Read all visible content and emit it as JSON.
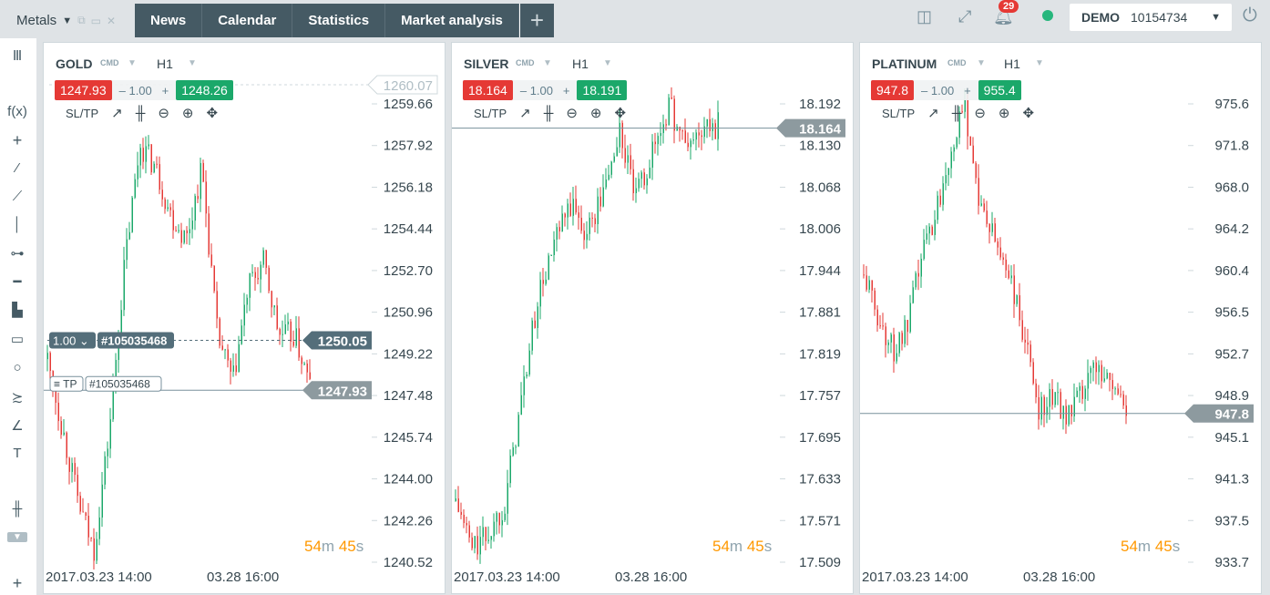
{
  "topbar": {
    "workspace": "Metals",
    "tabs": [
      "News",
      "Calendar",
      "Statistics",
      "Market analysis"
    ],
    "add_tab": "+",
    "notifications": "29",
    "account_type": "DEMO",
    "account_number": "10154734",
    "status_color": "#26b67c"
  },
  "left_toolbar": [
    "columns-icon",
    "function-icon",
    "crosshair-icon",
    "line-icon",
    "ray-icon",
    "vertical-line-icon",
    "horizontal-line-icon",
    "horizontal-ray-icon",
    "volume-bars-icon",
    "rectangle-icon",
    "circle-icon",
    "fibonacci-icon",
    "angle-icon",
    "text-icon",
    "candle-type-icon",
    "collapse-icon",
    "add-icon"
  ],
  "colors": {
    "up": "#1ba86a",
    "down": "#e53935",
    "bid": "#e53935",
    "ask": "#1ba86a",
    "timer": "#ff9800"
  },
  "panels": [
    {
      "symbol": "GOLD",
      "type": "CMD",
      "timeframe": "H1",
      "bid": "1247.93",
      "ask": "1248.26",
      "qty": "1.00",
      "minus": "–",
      "plus": "+",
      "sltp": "SL/TP",
      "timer_m": "54",
      "timer_s": "45",
      "m": "m",
      "s": "s",
      "dates": [
        "2017.03.23 14:00",
        "03.28 16:00"
      ]
    },
    {
      "symbol": "SILVER",
      "type": "CMD",
      "timeframe": "H1",
      "bid": "18.164",
      "ask": "18.191",
      "qty": "1.00",
      "minus": "–",
      "plus": "+",
      "sltp": "SL/TP",
      "timer_m": "54",
      "timer_s": "45",
      "m": "m",
      "s": "s",
      "dates": [
        "2017.03.23 14:00",
        "03.28 16:00"
      ]
    },
    {
      "symbol": "PLATINUM",
      "type": "CMD",
      "timeframe": "H1",
      "bid": "947.8",
      "ask": "955.4",
      "qty": "1.00",
      "minus": "–",
      "plus": "+",
      "sltp": "SL/TP",
      "timer_m": "54",
      "timer_s": "45",
      "m": "m",
      "s": "s",
      "dates": [
        "2017.03.23 14:00",
        "03.28 16:00"
      ]
    }
  ],
  "chart_data": [
    {
      "type": "candlestick",
      "symbol": "GOLD",
      "ticks": [
        "1259.66",
        "1257.92",
        "1256.18",
        "1254.44",
        "1252.70",
        "1250.96",
        "1249.22",
        "1247.48",
        "1245.74",
        "1244.00",
        "1242.26",
        "1240.52"
      ],
      "ylim": [
        1240.52,
        1259.66
      ],
      "current_price": "1247.93",
      "order_line": {
        "price": "1250.05",
        "qty": "1.00",
        "id": "#105035468"
      },
      "tp_line": {
        "label": "TP",
        "id": "#105035468"
      },
      "sl_price": "1260.07",
      "approx_path": [
        1249,
        1246,
        1243,
        1241,
        1246,
        1253,
        1258,
        1257,
        1255,
        1254,
        1257,
        1250,
        1248,
        1252,
        1253,
        1250,
        1250,
        1247.9
      ]
    },
    {
      "type": "candlestick",
      "symbol": "SILVER",
      "ticks": [
        "18.192",
        "18.130",
        "18.068",
        "18.006",
        "17.944",
        "17.881",
        "17.819",
        "17.757",
        "17.695",
        "17.633",
        "17.571",
        "17.509"
      ],
      "ylim": [
        17.509,
        18.192
      ],
      "current_price": "18.164",
      "approx_path": [
        17.6,
        17.53,
        17.55,
        17.6,
        17.75,
        17.9,
        17.98,
        18.04,
        18.0,
        18.06,
        18.15,
        18.05,
        18.12,
        18.19,
        18.13,
        18.15,
        18.16
      ]
    },
    {
      "type": "candlestick",
      "symbol": "PLATINUM",
      "ticks": [
        "975.6",
        "971.8",
        "968.0",
        "964.2",
        "960.4",
        "956.5",
        "952.7",
        "948.9",
        "945.1",
        "941.3",
        "937.5",
        "933.7"
      ],
      "ylim": [
        933.7,
        975.6
      ],
      "current_price": "947.8",
      "approx_path": [
        960,
        956,
        953,
        955,
        962,
        966,
        972,
        975,
        966,
        963,
        960,
        954,
        948,
        949,
        947,
        949,
        952,
        950,
        947.8
      ]
    }
  ]
}
